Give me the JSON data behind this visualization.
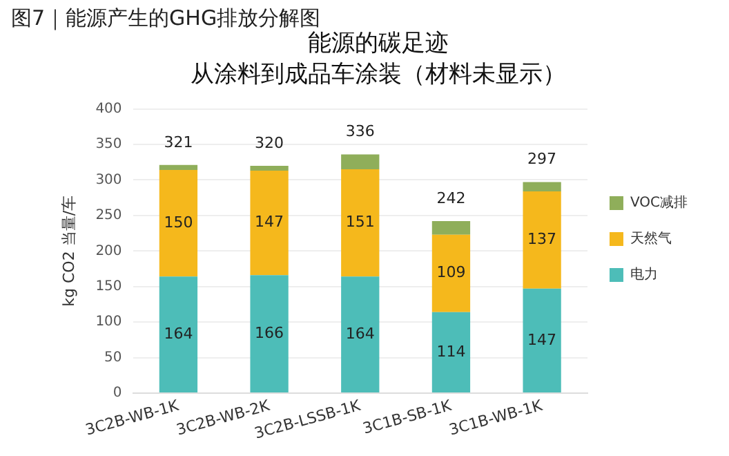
{
  "chart_data": {
    "type": "bar",
    "title": "能源的碳足迹",
    "subtitle": "从涂料到成品车涂装（材料未显示）",
    "annotations": [
      "图7｜能源产生的GHG排放分解图"
    ],
    "ylabel": "kg CO2 当量/车",
    "categories": [
      "3C2B-WB-1K",
      "3C2B-WB-2K",
      "3C2B-LSSB-1K",
      "3C1B-SB-1K",
      "3C1B-WB-1K"
    ],
    "series": [
      {
        "name": "电力",
        "color": "#4dbdb8",
        "values": [
          164,
          166,
          164,
          114,
          147
        ],
        "value_labels": [
          "164",
          "166",
          "164",
          "114",
          "147"
        ]
      },
      {
        "name": "天然气",
        "color": "#f5b81c",
        "values": [
          150,
          147,
          151,
          109,
          137
        ],
        "value_labels": [
          "150",
          "147",
          "151",
          "109",
          "137"
        ]
      },
      {
        "name": "VOC减排",
        "color": "#8fae5a",
        "values": [
          7,
          7,
          21,
          19,
          13
        ],
        "value_labels": [
          null,
          null,
          null,
          null,
          null
        ]
      }
    ],
    "stacked": true,
    "totals": [
      "321",
      "320",
      "336",
      "242",
      "297"
    ],
    "ylim": [
      0,
      400
    ],
    "yticks": [
      0,
      50,
      100,
      150,
      200,
      250,
      300,
      350,
      400
    ],
    "grid": "y",
    "legend": "right"
  }
}
